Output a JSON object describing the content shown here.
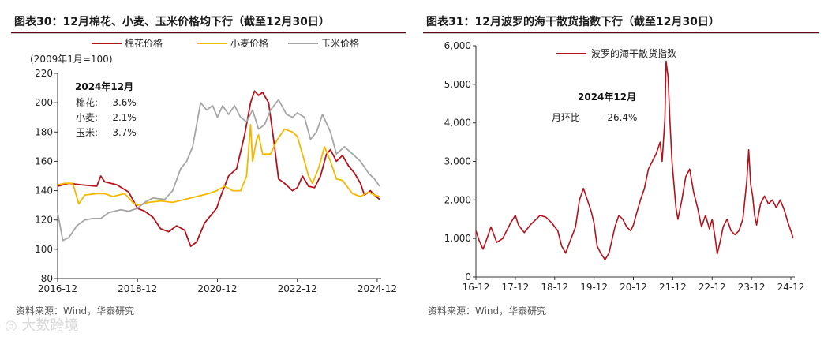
{
  "left": {
    "title": "图表30：12月棉花、小麦、玉米价格均下行（截至12月30日）",
    "unit_note": "(2009年1月=100)",
    "source": "资料来源：Wind，华泰研究",
    "annotation": {
      "heading": "2024年12月",
      "lines": [
        {
          "label": "棉花:",
          "value": "-3.6%"
        },
        {
          "label": "小麦:",
          "value": "-2.1%"
        },
        {
          "label": "玉米:",
          "value": "-3.7%"
        }
      ]
    },
    "chart_data": {
      "type": "line",
      "ylim": [
        80,
        220
      ],
      "yticks": [
        "80",
        "100",
        "120",
        "140",
        "160",
        "180",
        "200",
        "220"
      ],
      "xlim": [
        2016.92,
        2025.02
      ],
      "xticks": [
        {
          "t": 2016.92,
          "label": "2016-12"
        },
        {
          "t": 2018.92,
          "label": "2018-12"
        },
        {
          "t": 2020.92,
          "label": "2020-12"
        },
        {
          "t": 2022.92,
          "label": "2022-12"
        },
        {
          "t": 2024.92,
          "label": "2024-12"
        }
      ],
      "series": [
        {
          "name": "棉花价格",
          "color": "#b5121b",
          "points": [
            [
              2016.92,
              143
            ],
            [
              2017.2,
              145
            ],
            [
              2017.5,
              144
            ],
            [
              2017.9,
              143
            ],
            [
              2018.0,
              150
            ],
            [
              2018.1,
              146
            ],
            [
              2018.4,
              144
            ],
            [
              2018.7,
              139
            ],
            [
              2018.92,
              128
            ],
            [
              2019.1,
              126
            ],
            [
              2019.3,
              122
            ],
            [
              2019.5,
              114
            ],
            [
              2019.7,
              112
            ],
            [
              2019.9,
              116
            ],
            [
              2020.1,
              113
            ],
            [
              2020.25,
              102
            ],
            [
              2020.4,
              105
            ],
            [
              2020.6,
              118
            ],
            [
              2020.9,
              128
            ],
            [
              2021.0,
              136
            ],
            [
              2021.2,
              150
            ],
            [
              2021.4,
              155
            ],
            [
              2021.6,
              178
            ],
            [
              2021.75,
              200
            ],
            [
              2021.85,
              208
            ],
            [
              2021.95,
              205
            ],
            [
              2022.05,
              207
            ],
            [
              2022.2,
              200
            ],
            [
              2022.35,
              170
            ],
            [
              2022.45,
              148
            ],
            [
              2022.6,
              145
            ],
            [
              2022.8,
              140
            ],
            [
              2022.92,
              142
            ],
            [
              2023.05,
              150
            ],
            [
              2023.2,
              143
            ],
            [
              2023.35,
              142
            ],
            [
              2023.5,
              150
            ],
            [
              2023.65,
              165
            ],
            [
              2023.75,
              168
            ],
            [
              2023.9,
              160
            ],
            [
              2024.05,
              164
            ],
            [
              2024.2,
              157
            ],
            [
              2024.35,
              152
            ],
            [
              2024.5,
              145
            ],
            [
              2024.6,
              137
            ],
            [
              2024.75,
              140
            ],
            [
              2024.85,
              137
            ],
            [
              2024.98,
              134
            ]
          ]
        },
        {
          "name": "小麦价格",
          "color": "#f5b800",
          "points": [
            [
              2016.92,
              144
            ],
            [
              2017.1,
              145
            ],
            [
              2017.3,
              145
            ],
            [
              2017.45,
              131
            ],
            [
              2017.6,
              137
            ],
            [
              2017.9,
              138
            ],
            [
              2018.1,
              138
            ],
            [
              2018.3,
              136
            ],
            [
              2018.6,
              138
            ],
            [
              2018.8,
              132
            ],
            [
              2018.92,
              130
            ],
            [
              2019.2,
              132
            ],
            [
              2019.5,
              133
            ],
            [
              2019.8,
              132
            ],
            [
              2020.1,
              134
            ],
            [
              2020.4,
              136
            ],
            [
              2020.7,
              138
            ],
            [
              2020.9,
              140
            ],
            [
              2021.1,
              143
            ],
            [
              2021.3,
              140
            ],
            [
              2021.5,
              140
            ],
            [
              2021.65,
              150
            ],
            [
              2021.75,
              185
            ],
            [
              2021.8,
              160
            ],
            [
              2021.9,
              175
            ],
            [
              2021.95,
              178
            ],
            [
              2022.05,
              165
            ],
            [
              2022.25,
              165
            ],
            [
              2022.4,
              174
            ],
            [
              2022.6,
              182
            ],
            [
              2022.8,
              180
            ],
            [
              2022.92,
              177
            ],
            [
              2023.1,
              160
            ],
            [
              2023.2,
              150
            ],
            [
              2023.3,
              145
            ],
            [
              2023.45,
              155
            ],
            [
              2023.6,
              170
            ],
            [
              2023.75,
              160
            ],
            [
              2023.9,
              148
            ],
            [
              2024.05,
              147
            ],
            [
              2024.3,
              138
            ],
            [
              2024.5,
              136
            ],
            [
              2024.7,
              139
            ],
            [
              2024.85,
              137
            ],
            [
              2024.98,
              136
            ]
          ]
        },
        {
          "name": "玉米价格",
          "color": "#a6a6a6",
          "points": [
            [
              2016.92,
              125
            ],
            [
              2017.05,
              106
            ],
            [
              2017.2,
              108
            ],
            [
              2017.4,
              116
            ],
            [
              2017.6,
              120
            ],
            [
              2017.8,
              121
            ],
            [
              2018.0,
              121
            ],
            [
              2018.2,
              125
            ],
            [
              2018.5,
              127
            ],
            [
              2018.7,
              126
            ],
            [
              2018.92,
              128
            ],
            [
              2019.1,
              132
            ],
            [
              2019.3,
              135
            ],
            [
              2019.6,
              134
            ],
            [
              2019.8,
              140
            ],
            [
              2020.0,
              155
            ],
            [
              2020.15,
              160
            ],
            [
              2020.3,
              170
            ],
            [
              2020.5,
              200
            ],
            [
              2020.65,
              195
            ],
            [
              2020.8,
              198
            ],
            [
              2020.92,
              190
            ],
            [
              2021.05,
              198
            ],
            [
              2021.2,
              192
            ],
            [
              2021.35,
              198
            ],
            [
              2021.5,
              190
            ],
            [
              2021.65,
              187
            ],
            [
              2021.8,
              195
            ],
            [
              2021.95,
              182
            ],
            [
              2022.1,
              185
            ],
            [
              2022.25,
              195
            ],
            [
              2022.45,
              202
            ],
            [
              2022.65,
              192
            ],
            [
              2022.8,
              190
            ],
            [
              2022.92,
              193
            ],
            [
              2023.1,
              190
            ],
            [
              2023.25,
              175
            ],
            [
              2023.4,
              180
            ],
            [
              2023.55,
              192
            ],
            [
              2023.75,
              180
            ],
            [
              2023.9,
              165
            ],
            [
              2024.1,
              170
            ],
            [
              2024.3,
              165
            ],
            [
              2024.5,
              160
            ],
            [
              2024.7,
              152
            ],
            [
              2024.85,
              148
            ],
            [
              2024.98,
              143
            ]
          ]
        }
      ]
    }
  },
  "right": {
    "title": "图表31：12月波罗的海干散货指数下行（截至12月30日）",
    "source": "资料来源：Wind，华泰研究",
    "annotation": {
      "heading": "2024年12月",
      "label": "月环比",
      "value": "-26.4%"
    },
    "chart_data": {
      "type": "line",
      "ylim": [
        0,
        6000
      ],
      "yticks": [
        "0",
        "1,000",
        "2,000",
        "3,000",
        "4,000",
        "5,000",
        "6,000"
      ],
      "xlim": [
        2016.92,
        2025.02
      ],
      "xticks": [
        {
          "t": 2016.92,
          "label": "16-12"
        },
        {
          "t": 2017.92,
          "label": "17-12"
        },
        {
          "t": 2018.92,
          "label": "18-12"
        },
        {
          "t": 2019.92,
          "label": "19-12"
        },
        {
          "t": 2020.92,
          "label": "20-12"
        },
        {
          "t": 2021.92,
          "label": "21-12"
        },
        {
          "t": 2022.92,
          "label": "22-12"
        },
        {
          "t": 2023.92,
          "label": "23-12"
        },
        {
          "t": 2024.92,
          "label": "24-12"
        }
      ],
      "series": [
        {
          "name": "波罗的海干散货指数",
          "color": "#b5121b",
          "points": [
            [
              2016.92,
              1200
            ],
            [
              2017.0,
              950
            ],
            [
              2017.1,
              720
            ],
            [
              2017.2,
              1000
            ],
            [
              2017.3,
              1300
            ],
            [
              2017.45,
              900
            ],
            [
              2017.6,
              1000
            ],
            [
              2017.8,
              1400
            ],
            [
              2017.92,
              1600
            ],
            [
              2018.0,
              1350
            ],
            [
              2018.15,
              1150
            ],
            [
              2018.3,
              1350
            ],
            [
              2018.45,
              1500
            ],
            [
              2018.55,
              1600
            ],
            [
              2018.7,
              1550
            ],
            [
              2018.85,
              1400
            ],
            [
              2018.92,
              1300
            ],
            [
              2019.0,
              1200
            ],
            [
              2019.1,
              800
            ],
            [
              2019.2,
              620
            ],
            [
              2019.3,
              900
            ],
            [
              2019.45,
              1300
            ],
            [
              2019.55,
              2000
            ],
            [
              2019.65,
              2300
            ],
            [
              2019.75,
              2000
            ],
            [
              2019.85,
              1700
            ],
            [
              2019.92,
              1400
            ],
            [
              2020.0,
              800
            ],
            [
              2020.1,
              600
            ],
            [
              2020.2,
              450
            ],
            [
              2020.3,
              620
            ],
            [
              2020.45,
              1300
            ],
            [
              2020.55,
              1600
            ],
            [
              2020.65,
              1500
            ],
            [
              2020.75,
              1300
            ],
            [
              2020.85,
              1200
            ],
            [
              2020.92,
              1350
            ],
            [
              2021.0,
              1650
            ],
            [
              2021.1,
              2000
            ],
            [
              2021.2,
              2300
            ],
            [
              2021.3,
              2800
            ],
            [
              2021.4,
              3000
            ],
            [
              2021.5,
              3200
            ],
            [
              2021.6,
              3500
            ],
            [
              2021.65,
              3000
            ],
            [
              2021.72,
              4100
            ],
            [
              2021.75,
              5600
            ],
            [
              2021.8,
              5200
            ],
            [
              2021.85,
              4000
            ],
            [
              2021.9,
              3000
            ],
            [
              2021.95,
              2400
            ],
            [
              2022.0,
              1800
            ],
            [
              2022.05,
              1500
            ],
            [
              2022.15,
              2000
            ],
            [
              2022.25,
              2600
            ],
            [
              2022.35,
              2800
            ],
            [
              2022.45,
              2200
            ],
            [
              2022.55,
              1800
            ],
            [
              2022.65,
              1300
            ],
            [
              2022.75,
              1600
            ],
            [
              2022.85,
              1250
            ],
            [
              2022.92,
              1500
            ],
            [
              2023.0,
              1000
            ],
            [
              2023.05,
              600
            ],
            [
              2023.12,
              900
            ],
            [
              2023.2,
              1300
            ],
            [
              2023.3,
              1500
            ],
            [
              2023.4,
              1200
            ],
            [
              2023.5,
              1100
            ],
            [
              2023.6,
              1200
            ],
            [
              2023.7,
              1500
            ],
            [
              2023.8,
              2500
            ],
            [
              2023.85,
              3300
            ],
            [
              2023.9,
              2400
            ],
            [
              2023.95,
              2100
            ],
            [
              2024.0,
              1600
            ],
            [
              2024.05,
              1350
            ],
            [
              2024.15,
              1900
            ],
            [
              2024.25,
              2100
            ],
            [
              2024.35,
              1900
            ],
            [
              2024.45,
              2000
            ],
            [
              2024.55,
              1800
            ],
            [
              2024.65,
              2000
            ],
            [
              2024.75,
              1750
            ],
            [
              2024.85,
              1400
            ],
            [
              2024.92,
              1200
            ],
            [
              2024.98,
              1000
            ]
          ]
        }
      ]
    }
  }
}
